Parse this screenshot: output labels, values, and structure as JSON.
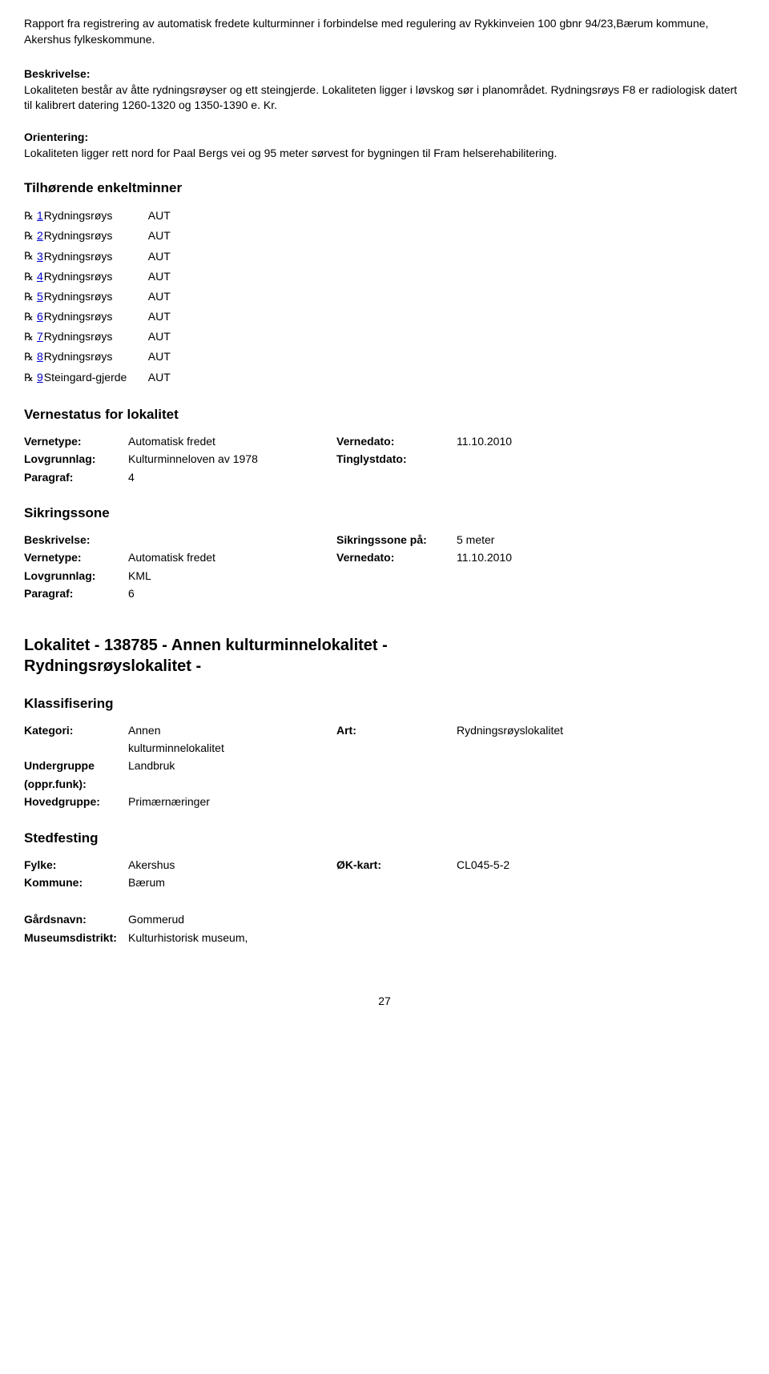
{
  "header": "Rapport fra registrering av automatisk fredete kulturminner i forbindelse med regulering av Rykkinveien 100 gbnr 94/23,Bærum kommune, Akershus fylkeskommune.",
  "beskrivelse": {
    "label": "Beskrivelse:",
    "text": "Lokaliteten består av åtte rydningsrøyser og ett steingjerde. Lokaliteten ligger i løvskog sør i planområdet. Rydningsrøys F8 er radiologisk datert til kalibrert datering 1260-1320 og 1350-1390 e. Kr."
  },
  "orientering": {
    "label": "Orientering:",
    "text": "Lokaliteten ligger rett nord for Paal Bergs vei og 95 meter sørvest for bygningen til Fram helserehabilitering."
  },
  "enkeltminner": {
    "heading": "Tilhørende enkeltminner",
    "items": [
      {
        "num": "1",
        "name": "Rydningsrøys",
        "type": "AUT"
      },
      {
        "num": "2",
        "name": "Rydningsrøys",
        "type": "AUT"
      },
      {
        "num": "3",
        "name": "Rydningsrøys",
        "type": "AUT"
      },
      {
        "num": "4",
        "name": "Rydningsrøys",
        "type": "AUT"
      },
      {
        "num": "5",
        "name": "Rydningsrøys",
        "type": "AUT"
      },
      {
        "num": "6",
        "name": "Rydningsrøys",
        "type": "AUT"
      },
      {
        "num": "7",
        "name": "Rydningsrøys",
        "type": "AUT"
      },
      {
        "num": "8",
        "name": "Rydningsrøys",
        "type": "AUT"
      },
      {
        "num": "9",
        "name": "Steingard-gjerde",
        "type": "AUT"
      }
    ]
  },
  "vernestatus": {
    "heading": "Vernestatus for lokalitet",
    "rows": [
      {
        "l1": "Vernetype:",
        "v1": "Automatisk fredet",
        "l2": "Vernedato:",
        "v2": "11.10.2010"
      },
      {
        "l1": "Lovgrunnlag:",
        "v1": "Kulturminneloven av 1978",
        "l2": "Tinglystdato:",
        "v2": ""
      },
      {
        "l1": "Paragraf:",
        "v1": "4",
        "l2": "",
        "v2": ""
      }
    ]
  },
  "sikringssone": {
    "heading": "Sikringssone",
    "rows": [
      {
        "l1": "Beskrivelse:",
        "v1": "",
        "l2": "Sikringssone på:",
        "v2": "5 meter"
      },
      {
        "l1": "Vernetype:",
        "v1": "Automatisk fredet",
        "l2": "Vernedato:",
        "v2": "11.10.2010"
      },
      {
        "l1": "Lovgrunnlag:",
        "v1": "KML",
        "l2": "",
        "v2": ""
      },
      {
        "l1": "Paragraf:",
        "v1": "6",
        "l2": "",
        "v2": ""
      }
    ]
  },
  "lokalitet": {
    "heading_l1": "Lokalitet - 138785 - Annen kulturminnelokalitet -",
    "heading_l2": "Rydningsrøyslokalitet -"
  },
  "klassifisering": {
    "heading": "Klassifisering",
    "rows": [
      {
        "l1": "Kategori:",
        "v1a": "Annen",
        "v1b": "kulturminnelokalitet",
        "l2": "Art:",
        "v2": "Rydningsrøyslokalitet"
      },
      {
        "l1": "Undergruppe",
        "v1a": "Landbruk",
        "v1b": "",
        "l2": "",
        "v2": ""
      },
      {
        "l1": "(oppr.funk):",
        "v1a": "",
        "v1b": "",
        "l2": "",
        "v2": ""
      },
      {
        "l1": "Hovedgruppe:",
        "v1a": "Primærnæringer",
        "v1b": "",
        "l2": "",
        "v2": ""
      }
    ]
  },
  "stedfesting": {
    "heading": "Stedfesting",
    "rows1": [
      {
        "l1": "Fylke:",
        "v1": "Akershus",
        "l2": "ØK-kart:",
        "v2": "CL045-5-2"
      },
      {
        "l1": "Kommune:",
        "v1": "Bærum",
        "l2": "",
        "v2": ""
      }
    ],
    "rows2": [
      {
        "l1": "Gårdsnavn:",
        "v1": "Gommerud",
        "l2": "",
        "v2": ""
      },
      {
        "l1": "Museumsdistrikt:",
        "v1": "Kulturhistorisk museum,",
        "l2": "",
        "v2": ""
      }
    ]
  },
  "page_num": "27",
  "icon_glyph": "℞"
}
